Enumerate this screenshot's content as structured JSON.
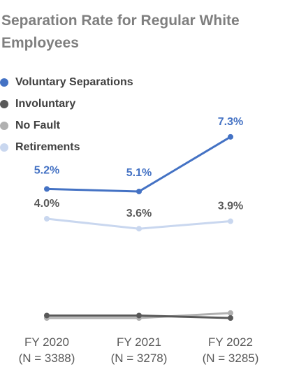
{
  "chart_data": {
    "type": "line",
    "title": [
      "Separation Rate for Regular White",
      "Employees"
    ],
    "categories": [
      [
        "FY 2020",
        "(N = 3388)"
      ],
      [
        "FY 2021",
        "(N = 3278)"
      ],
      [
        "FY 2022",
        "(N = 3285)"
      ]
    ],
    "series": [
      {
        "name": "Voluntary Separations",
        "color": "#4472c4",
        "values": [
          5.2,
          5.1,
          7.3
        ],
        "labels": [
          "5.2%",
          "5.1%",
          "7.3%"
        ],
        "label_color": "#4472c4",
        "width": 3
      },
      {
        "name": "Involuntary",
        "color": "#595959",
        "values": [
          0.1,
          0.1,
          0.0
        ],
        "width": 3
      },
      {
        "name": "No Fault",
        "color": "#b0b0b0",
        "values": [
          0.0,
          0.0,
          0.2
        ],
        "width": 3
      },
      {
        "name": "Retirements",
        "color": "#c9d7ef",
        "values": [
          4.0,
          3.6,
          3.9
        ],
        "labels": [
          "4.0%",
          "3.6%",
          "3.9%"
        ],
        "label_color": "#595959",
        "width": 3
      }
    ],
    "ylim": [
      0,
      8
    ],
    "grid": false,
    "legend_position": "top-left"
  }
}
